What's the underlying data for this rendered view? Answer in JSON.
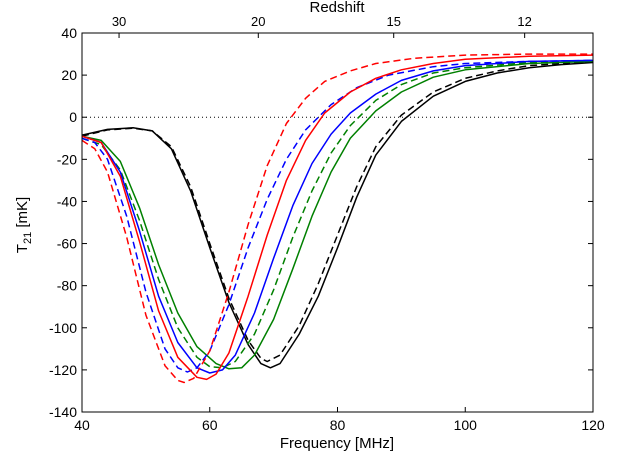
{
  "chart_data": {
    "type": "line",
    "title": "",
    "xlabel": "Frequency [MHz]",
    "ylabel": "T21 [mK]",
    "ylabel_main": "T",
    "ylabel_sub": "21",
    "ylabel_unit": " [mK]",
    "top_axis_label": "Redshift",
    "xlim": [
      40,
      120
    ],
    "ylim": [
      -140,
      40
    ],
    "x_ticks": [
      40,
      60,
      80,
      100,
      120
    ],
    "y_ticks": [
      -140,
      -120,
      -100,
      -80,
      -60,
      -40,
      -20,
      0,
      20,
      40
    ],
    "top_ticks": [
      {
        "label": "30",
        "frequency": 45.8
      },
      {
        "label": "20",
        "frequency": 67.6
      },
      {
        "label": "15",
        "frequency": 88.8
      },
      {
        "label": "12",
        "frequency": 109.3
      }
    ],
    "grid": false,
    "legend": "none",
    "reference_line": {
      "y": 0,
      "style": "dotted",
      "color": "#000000"
    },
    "series": [
      {
        "color": "#000000",
        "dash": "solid",
        "points": [
          [
            40,
            -8.5
          ],
          [
            44,
            -5.8
          ],
          [
            48,
            -5
          ],
          [
            51,
            -6.5
          ],
          [
            54,
            -15
          ],
          [
            57,
            -35
          ],
          [
            60,
            -62
          ],
          [
            63,
            -88
          ],
          [
            66,
            -108
          ],
          [
            68,
            -117
          ],
          [
            69.5,
            -119
          ],
          [
            71,
            -117
          ],
          [
            74,
            -103
          ],
          [
            77,
            -85
          ],
          [
            80,
            -62
          ],
          [
            83,
            -38
          ],
          [
            86,
            -18
          ],
          [
            90,
            -2
          ],
          [
            95,
            10
          ],
          [
            100,
            17
          ],
          [
            105,
            21
          ],
          [
            110,
            23.5
          ],
          [
            115,
            25
          ],
          [
            120,
            26
          ]
        ]
      },
      {
        "color": "#000000",
        "dash": "dashed",
        "points": [
          [
            40,
            -9
          ],
          [
            44,
            -6
          ],
          [
            48,
            -5.2
          ],
          [
            51,
            -6.5
          ],
          [
            54,
            -14
          ],
          [
            57,
            -33
          ],
          [
            60,
            -60
          ],
          [
            63,
            -86
          ],
          [
            66,
            -106
          ],
          [
            68,
            -114.5
          ],
          [
            69,
            -116
          ],
          [
            71,
            -113
          ],
          [
            74,
            -99
          ],
          [
            77,
            -79
          ],
          [
            80,
            -56
          ],
          [
            83,
            -33
          ],
          [
            86,
            -14
          ],
          [
            90,
            1
          ],
          [
            95,
            12
          ],
          [
            100,
            18.5
          ],
          [
            105,
            22
          ],
          [
            110,
            24.5
          ],
          [
            115,
            25.5
          ],
          [
            120,
            26.5
          ]
        ]
      },
      {
        "color": "#008000",
        "dash": "solid",
        "points": [
          [
            40,
            -9
          ],
          [
            43,
            -11
          ],
          [
            46,
            -21
          ],
          [
            49,
            -43
          ],
          [
            52,
            -70
          ],
          [
            55,
            -93
          ],
          [
            58,
            -109
          ],
          [
            61,
            -117
          ],
          [
            63,
            -119.5
          ],
          [
            65,
            -119
          ],
          [
            67,
            -113
          ],
          [
            70,
            -96
          ],
          [
            73,
            -72
          ],
          [
            76,
            -47
          ],
          [
            79,
            -26
          ],
          [
            82,
            -10
          ],
          [
            86,
            3
          ],
          [
            90,
            12
          ],
          [
            95,
            19
          ],
          [
            100,
            22.5
          ],
          [
            110,
            25.5
          ],
          [
            120,
            26.5
          ]
        ]
      },
      {
        "color": "#008000",
        "dash": "dashed",
        "points": [
          [
            40,
            -10
          ],
          [
            43,
            -13
          ],
          [
            46,
            -25
          ],
          [
            49,
            -49
          ],
          [
            52,
            -77
          ],
          [
            55,
            -100
          ],
          [
            58,
            -114
          ],
          [
            60,
            -118.5
          ],
          [
            62,
            -119
          ],
          [
            64,
            -116
          ],
          [
            67,
            -103
          ],
          [
            70,
            -82
          ],
          [
            73,
            -57
          ],
          [
            76,
            -35
          ],
          [
            79,
            -17
          ],
          [
            82,
            -4
          ],
          [
            86,
            8
          ],
          [
            90,
            15.5
          ],
          [
            95,
            21
          ],
          [
            100,
            23.5
          ],
          [
            110,
            26
          ],
          [
            120,
            27
          ]
        ]
      },
      {
        "color": "#0000ff",
        "dash": "solid",
        "points": [
          [
            40,
            -9
          ],
          [
            43,
            -12
          ],
          [
            46,
            -26
          ],
          [
            49,
            -54
          ],
          [
            52,
            -85
          ],
          [
            55,
            -107
          ],
          [
            58,
            -119
          ],
          [
            60,
            -121.5
          ],
          [
            62,
            -120
          ],
          [
            64,
            -113
          ],
          [
            67,
            -93
          ],
          [
            70,
            -67
          ],
          [
            73,
            -42
          ],
          [
            76,
            -22
          ],
          [
            79,
            -8
          ],
          [
            82,
            2
          ],
          [
            86,
            11
          ],
          [
            90,
            17.5
          ],
          [
            95,
            22
          ],
          [
            100,
            24.5
          ],
          [
            110,
            26.5
          ],
          [
            120,
            27
          ]
        ]
      },
      {
        "color": "#0000ff",
        "dash": "dashed",
        "points": [
          [
            40,
            -10
          ],
          [
            42,
            -12
          ],
          [
            44,
            -20
          ],
          [
            47,
            -47
          ],
          [
            50,
            -83
          ],
          [
            53,
            -110
          ],
          [
            55,
            -119
          ],
          [
            56.5,
            -121
          ],
          [
            58,
            -119
          ],
          [
            60,
            -111
          ],
          [
            63,
            -89
          ],
          [
            66,
            -62
          ],
          [
            69,
            -39
          ],
          [
            72,
            -20
          ],
          [
            75,
            -6
          ],
          [
            79,
            6
          ],
          [
            83,
            14
          ],
          [
            88,
            20
          ],
          [
            95,
            24
          ],
          [
            100,
            25.5
          ],
          [
            110,
            26.5
          ],
          [
            120,
            27
          ]
        ]
      },
      {
        "color": "#ff0000",
        "dash": "solid",
        "points": [
          [
            40,
            -9
          ],
          [
            43,
            -12
          ],
          [
            46,
            -28
          ],
          [
            49,
            -59
          ],
          [
            52,
            -92
          ],
          [
            55,
            -114
          ],
          [
            58,
            -123.5
          ],
          [
            59.5,
            -124.5
          ],
          [
            61,
            -122
          ],
          [
            63,
            -112
          ],
          [
            66,
            -85
          ],
          [
            69,
            -56
          ],
          [
            72,
            -30
          ],
          [
            75,
            -11
          ],
          [
            78,
            2
          ],
          [
            82,
            12
          ],
          [
            86,
            18.5
          ],
          [
            90,
            22.5
          ],
          [
            95,
            25.5
          ],
          [
            100,
            27.5
          ],
          [
            110,
            29
          ],
          [
            120,
            29.5
          ]
        ]
      },
      {
        "color": "#ff0000",
        "dash": "dashed",
        "points": [
          [
            40,
            -11
          ],
          [
            42,
            -15
          ],
          [
            44,
            -26
          ],
          [
            47,
            -57
          ],
          [
            50,
            -94
          ],
          [
            53,
            -118
          ],
          [
            55,
            -125
          ],
          [
            56,
            -126
          ],
          [
            57.5,
            -124
          ],
          [
            60,
            -111
          ],
          [
            63,
            -83
          ],
          [
            66,
            -51
          ],
          [
            69,
            -23
          ],
          [
            72,
            -3
          ],
          [
            75,
            9
          ],
          [
            78,
            17
          ],
          [
            82,
            22
          ],
          [
            86,
            25.5
          ],
          [
            92,
            28
          ],
          [
            100,
            29.5
          ],
          [
            110,
            30
          ],
          [
            120,
            30
          ]
        ]
      }
    ]
  }
}
